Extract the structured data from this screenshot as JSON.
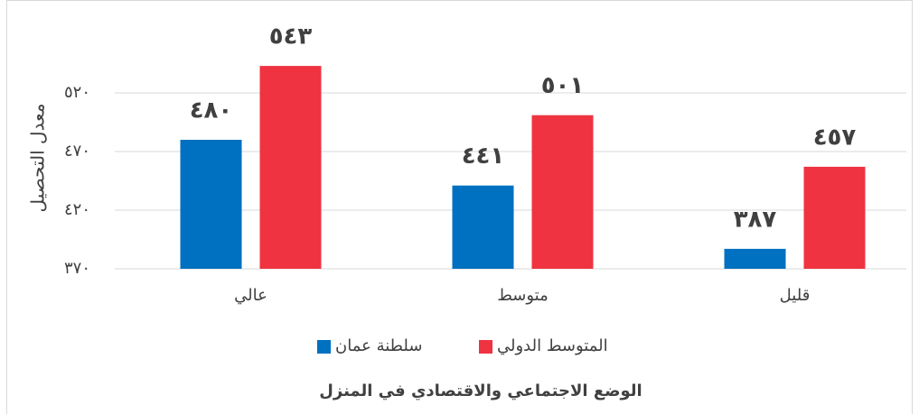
{
  "chart_data": {
    "type": "bar",
    "x_label": "الوضع الاجتماعي والاقتصادي في المنزل",
    "y_label": "معدل التحصيل",
    "categories": [
      "عالي",
      "متوسط",
      "قليل"
    ],
    "series": [
      {
        "name": "سلطنة عمان",
        "color": "#0070c0",
        "values": [
          480,
          441,
          387
        ],
        "value_labels": [
          "٤٨٠",
          "٤٤١",
          "٣٨٧"
        ]
      },
      {
        "name": "المتوسط الدولي",
        "color": "#ef3340",
        "values": [
          543,
          501,
          457
        ],
        "value_labels": [
          "٥٤٣",
          "٥٠١",
          "٤٥٧"
        ]
      }
    ],
    "ylim": [
      370,
      570
    ],
    "yticks": [
      {
        "value": 370,
        "label": "٣٧٠"
      },
      {
        "value": 420,
        "label": "٤٢٠"
      },
      {
        "value": 470,
        "label": "٤٧٠"
      },
      {
        "value": 520,
        "label": "٥٢٠"
      }
    ],
    "grid": true
  }
}
